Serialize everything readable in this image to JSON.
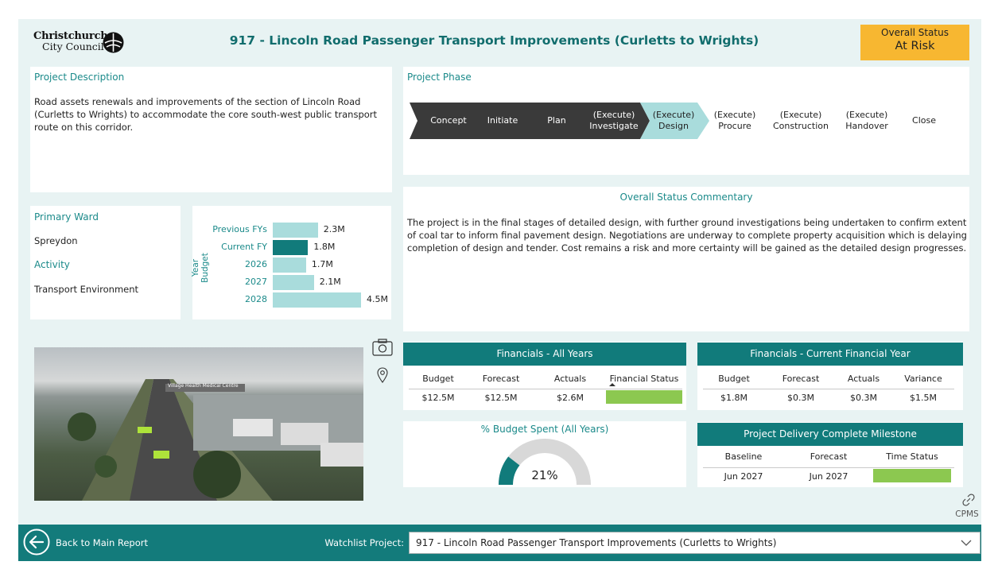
{
  "header": {
    "logo_line1": "Christchurch",
    "logo_line2": "City Council",
    "title": "917 - Lincoln Road Passenger Transport Improvements (Curletts to Wrights)",
    "overall_status_label": "Overall Status",
    "overall_status_value": "At Risk",
    "status_color": "#f7b731"
  },
  "description": {
    "title": "Project Description",
    "text": "Road assets renewals and improvements of the section of Lincoln Road (Curletts to Wrights) to accommodate the core south-west public transport route on this corridor."
  },
  "phase": {
    "title": "Project Phase",
    "steps": [
      {
        "line1": "Concept",
        "line2": "",
        "state": "done"
      },
      {
        "line1": "Initiate",
        "line2": "",
        "state": "done"
      },
      {
        "line1": "Plan",
        "line2": "",
        "state": "done"
      },
      {
        "line1": "(Execute)",
        "line2": "Investigate",
        "state": "done"
      },
      {
        "line1": "(Execute)",
        "line2": "Design",
        "state": "current"
      },
      {
        "line1": "(Execute)",
        "line2": "Procure",
        "state": "todo"
      },
      {
        "line1": "(Execute)",
        "line2": "Construction",
        "state": "todo"
      },
      {
        "line1": "(Execute)",
        "line2": "Handover",
        "state": "todo"
      },
      {
        "line1": "Close",
        "line2": "",
        "state": "todo"
      }
    ],
    "colors": {
      "done": "#3a3a3a",
      "current": "#a9dcdc"
    }
  },
  "ward": {
    "primary_ward_label": "Primary Ward",
    "primary_ward_value": "Spreydon",
    "activity_label": "Activity",
    "activity_value": "Transport Environment"
  },
  "chart_data": {
    "type": "bar",
    "orientation": "horizontal",
    "ylabel": "Year Budget",
    "categories": [
      "Previous FYs",
      "Current FY",
      "2026",
      "2027",
      "2028"
    ],
    "values": [
      2.3,
      1.8,
      1.7,
      2.1,
      4.5
    ],
    "value_labels": [
      "2.3M",
      "1.8M",
      "1.7M",
      "2.1M",
      "4.5M"
    ],
    "highlight": "Current FY"
  },
  "commentary": {
    "title": "Overall Status Commentary",
    "text": "The project is in the final stages of detailed design, with further ground investigations being undertaken to confirm extent of coal tar to inform final pavement design. Negotiations are underway to complete property acquisition which is delaying completion of design and tender. Cost remains a risk and more certainty will be gained as the detailed design progresses."
  },
  "fin_all": {
    "title": "Financials - All Years",
    "headers": [
      "Budget",
      "Forecast",
      "Actuals",
      "Financial Status"
    ],
    "values": [
      "$12.5M",
      "$12.5M",
      "$2.6M"
    ],
    "status_color": "#8cc850"
  },
  "fin_current": {
    "title": "Financials - Current Financial Year",
    "headers": [
      "Budget",
      "Forecast",
      "Actuals",
      "Variance"
    ],
    "values": [
      "$1.8M",
      "$0.3M",
      "$0.3M",
      "$1.5M"
    ]
  },
  "budget_spent": {
    "title": "% Budget Spent (All Years)",
    "percent": 21,
    "label": "21%"
  },
  "milestone": {
    "title": "Project Delivery Complete Milestone",
    "headers": [
      "Baseline",
      "Forecast",
      "Time Status"
    ],
    "values": [
      "Jun 2027",
      "Jun 2027"
    ],
    "status_color": "#8cc850"
  },
  "side_icons": {
    "camera": "camera-icon",
    "location": "location-pin-icon",
    "link": "link-icon",
    "link_label": "CPMS"
  },
  "footer": {
    "back_label": "Back to Main Report",
    "watchlist_label": "Watchlist Project:",
    "watchlist_value": "917 - Lincoln Road Passenger Transport Improvements (Curletts to Wrights)"
  },
  "image": {
    "caption": "Village Health Medical Centre"
  }
}
